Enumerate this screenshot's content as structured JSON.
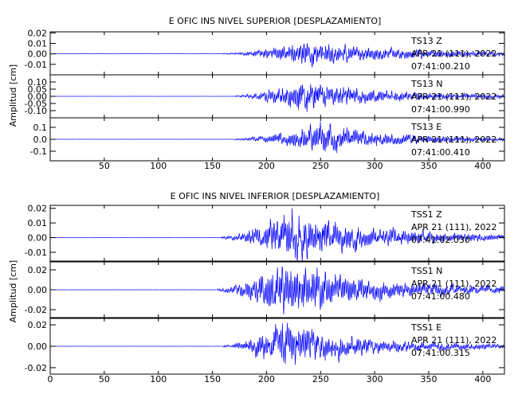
{
  "chart_data": [
    {
      "type": "line",
      "title": "E OFIC INS NIVEL SUPERIOR [DESPLAZAMIENTO]",
      "ylabel": "Amplitud  [cm]",
      "xlim": [
        0,
        420
      ],
      "x_ticks": [
        "50",
        "100",
        "150",
        "200",
        "250",
        "300",
        "350",
        "400"
      ],
      "x_tick_values": [
        50,
        100,
        150,
        200,
        250,
        300,
        350,
        400
      ],
      "line_color": "#0000ff",
      "panels": [
        {
          "station": "TS13",
          "component": "Z",
          "date": "APR 21 (111), 2022",
          "time": "07:41:00.210",
          "ylim": [
            -0.02,
            0.021
          ],
          "y_ticks": [
            "0.02",
            "0.01",
            "0.00",
            "-0.01"
          ],
          "y_tick_values": [
            0.02,
            0.01,
            0.0,
            -0.01
          ],
          "signal": {
            "onset": 160,
            "peak_time": 235,
            "peak_amp": 0.013,
            "rise": 28,
            "decay": 95,
            "seed": 11
          }
        },
        {
          "station": "TS13",
          "component": "N",
          "date": "APR 21 (111), 2022",
          "time": "07:41:00.990",
          "ylim": [
            -0.15,
            0.15
          ],
          "y_ticks": [
            "0.10",
            "0.05",
            "0.00",
            "-0.05",
            "-0.10"
          ],
          "y_tick_values": [
            0.1,
            0.05,
            0.0,
            -0.05,
            -0.1
          ],
          "signal": {
            "onset": 170,
            "peak_time": 233,
            "peak_amp": 0.11,
            "rise": 25,
            "decay": 70,
            "seed": 23
          }
        },
        {
          "station": "TS13",
          "component": "E",
          "date": "APR 21 (111), 2022",
          "time": "07:41:00.410",
          "ylim": [
            -0.18,
            0.18
          ],
          "y_ticks": [
            "0.1",
            "0.0",
            "-0.1"
          ],
          "y_tick_values": [
            0.1,
            0.0,
            -0.1
          ],
          "signal": {
            "onset": 170,
            "peak_time": 252,
            "peak_amp": 0.15,
            "rise": 30,
            "decay": 60,
            "seed": 37
          }
        }
      ]
    },
    {
      "type": "line",
      "title": "E OFIC INS NIVEL INFERIOR [DESPLAZAMIENTO]",
      "ylabel": "Amplitud  [cm]",
      "xlim": [
        0,
        420
      ],
      "x_ticks": [
        "0",
        "50",
        "100",
        "150",
        "200",
        "250",
        "300",
        "350",
        "400"
      ],
      "x_tick_values": [
        0,
        50,
        100,
        150,
        200,
        250,
        300,
        350,
        400
      ],
      "line_color": "#0000ff",
      "panels": [
        {
          "station": "TSS1",
          "component": "Z",
          "date": "APR 21 (111), 2022",
          "time": "07:41:02.030",
          "ylim": [
            -0.016,
            0.022
          ],
          "y_ticks": [
            "0.02",
            "0.01",
            "0.00",
            "-0.01"
          ],
          "y_tick_values": [
            0.02,
            0.01,
            0.0,
            -0.01
          ],
          "signal": {
            "onset": 158,
            "peak_time": 222,
            "peak_amp": 0.02,
            "rise": 28,
            "decay": 80,
            "seed": 41
          }
        },
        {
          "station": "TSS1",
          "component": "N",
          "date": "APR 21 (111), 2022",
          "time": "07:41:00.480",
          "ylim": [
            -0.028,
            0.028
          ],
          "y_ticks": [
            "0.02",
            "0.00",
            "-0.02"
          ],
          "y_tick_values": [
            0.02,
            0.0,
            -0.02
          ],
          "signal": {
            "onset": 155,
            "peak_time": 218,
            "peak_amp": 0.025,
            "rise": 25,
            "decay": 75,
            "seed": 53
          }
        },
        {
          "station": "TSS1",
          "component": "E",
          "date": "APR 21 (111), 2022",
          "time": "07:41:00.315",
          "ylim": [
            -0.026,
            0.026
          ],
          "y_ticks": [
            "0.02",
            "0.00",
            "-0.02"
          ],
          "y_tick_values": [
            0.02,
            0.0,
            -0.02
          ],
          "signal": {
            "onset": 160,
            "peak_time": 215,
            "peak_amp": 0.022,
            "rise": 25,
            "decay": 70,
            "seed": 67
          }
        }
      ]
    }
  ]
}
